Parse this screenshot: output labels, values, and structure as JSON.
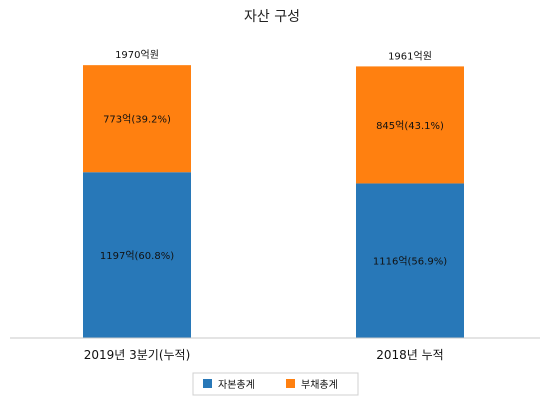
{
  "chart_data": {
    "type": "bar",
    "stacked": true,
    "title": "자산 구성",
    "categories": [
      "2019년 3분기(누적)",
      "2018년 누적"
    ],
    "series": [
      {
        "name": "자본총계",
        "color": "#2878b8",
        "values": [
          1197,
          1116
        ],
        "labels": [
          "1197억(60.8%)",
          "1116억(56.9%)"
        ]
      },
      {
        "name": "부채총계",
        "color": "#ff8010",
        "values": [
          773,
          845
        ],
        "labels": [
          "773억(39.2%)",
          "845억(43.1%)"
        ]
      }
    ],
    "totals": [
      "1970억원",
      "1961억원"
    ],
    "ylim": [
      0,
      2000
    ],
    "grid": false,
    "legend": "bottom"
  }
}
